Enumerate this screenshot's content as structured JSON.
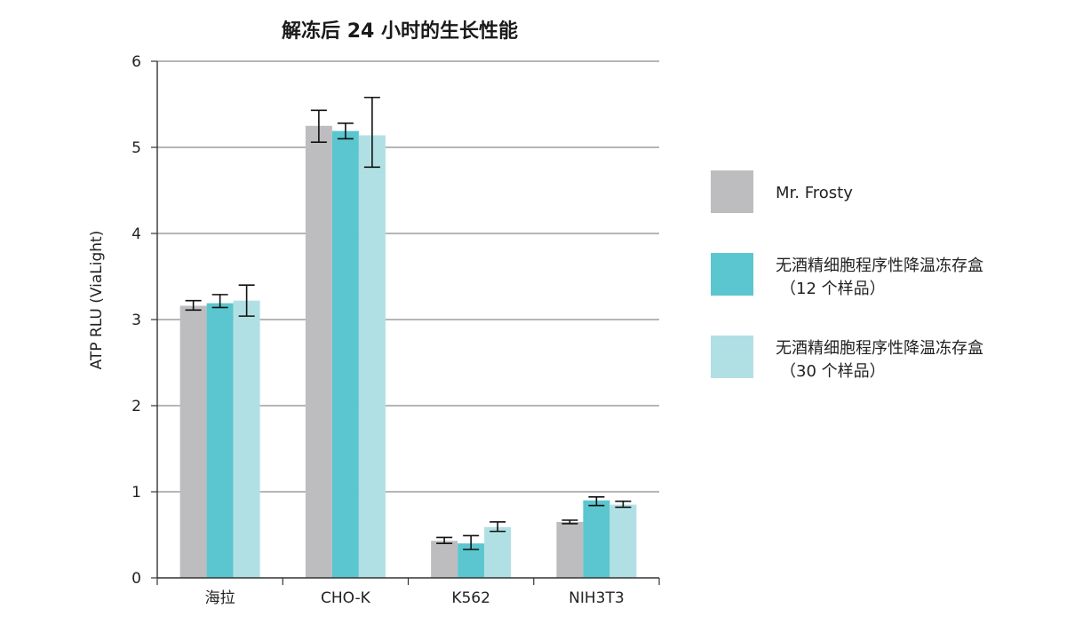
{
  "chart_data": {
    "type": "bar",
    "title": "解冻后 24 小时的生长性能",
    "xlabel": "",
    "ylabel": "ATP RLU (ViaLight)",
    "ylim": [
      0,
      6
    ],
    "yticks": [
      "0",
      "1",
      "2",
      "3",
      "4",
      "5",
      "6"
    ],
    "grid": true,
    "legend_position": "right",
    "categories": [
      "海拉",
      "CHO-K",
      "K562",
      "NIH3T3"
    ],
    "series": [
      {
        "name": "Mr. Frosty",
        "legend_lines": [
          "Mr. Frosty"
        ],
        "color": "#bdbdbf",
        "values": [
          3.16,
          5.25,
          0.43,
          0.65
        ],
        "err_low": [
          3.11,
          5.06,
          0.4,
          0.63
        ],
        "err_high": [
          3.22,
          5.43,
          0.47,
          0.67
        ]
      },
      {
        "name": "无酒精细胞程序性降温冻存盒（12 个样品）",
        "legend_lines": [
          "无酒精细胞程序性降温冻存盒",
          "（12 个样品）"
        ],
        "color": "#5bc6cf",
        "values": [
          3.19,
          5.19,
          0.4,
          0.9
        ],
        "err_low": [
          3.14,
          5.1,
          0.33,
          0.84
        ],
        "err_high": [
          3.29,
          5.28,
          0.49,
          0.94
        ]
      },
      {
        "name": "无酒精细胞程序性降温冻存盒（30 个样品）",
        "legend_lines": [
          "无酒精细胞程序性降温冻存盒",
          "（30 个样品）"
        ],
        "color": "#b1e0e4",
        "values": [
          3.22,
          5.14,
          0.59,
          0.85
        ],
        "err_low": [
          3.04,
          4.77,
          0.54,
          0.82
        ],
        "err_high": [
          3.4,
          5.58,
          0.65,
          0.89
        ]
      }
    ]
  }
}
